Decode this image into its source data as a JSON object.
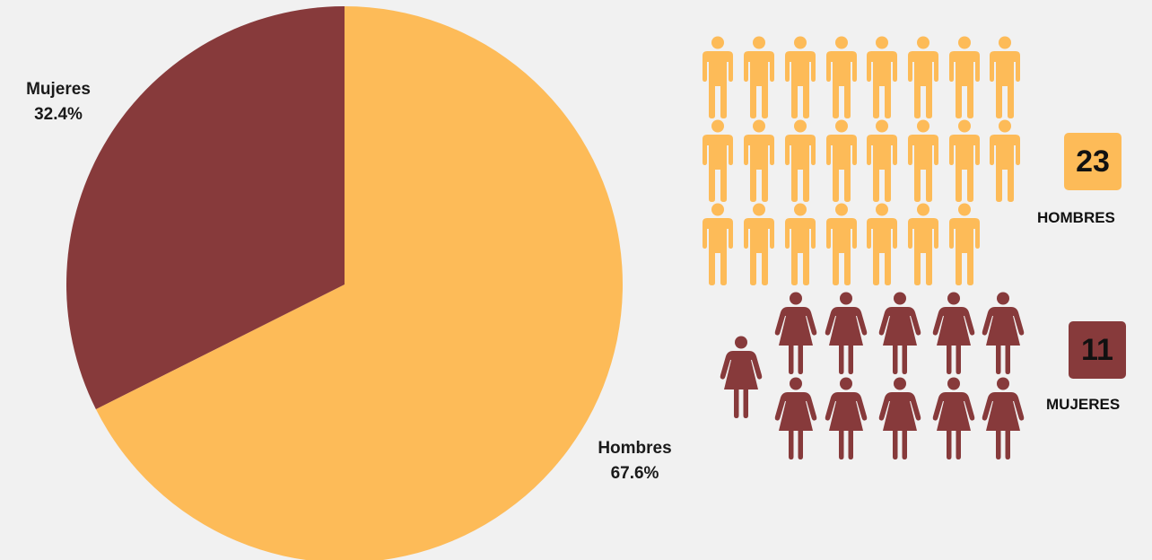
{
  "chart_data": {
    "type": "pie",
    "slices": [
      {
        "label": "Hombres",
        "percent": "67.6%",
        "value": 67.6,
        "color": "#fdbb58"
      },
      {
        "label": "Mujeres",
        "percent": "32.4%",
        "value": 32.4,
        "color": "#873a3b"
      }
    ],
    "start_angle": "12 o'clock, clockwise"
  },
  "pictogram": {
    "hombres": {
      "count": 23,
      "count_text": "23",
      "label": "HOMBRES",
      "color": "#fdbb58",
      "icon": "male-person-icon"
    },
    "mujeres": {
      "count": 11,
      "count_text": "11",
      "label": "MUJERES",
      "color": "#873a3b",
      "icon": "female-person-icon"
    }
  }
}
